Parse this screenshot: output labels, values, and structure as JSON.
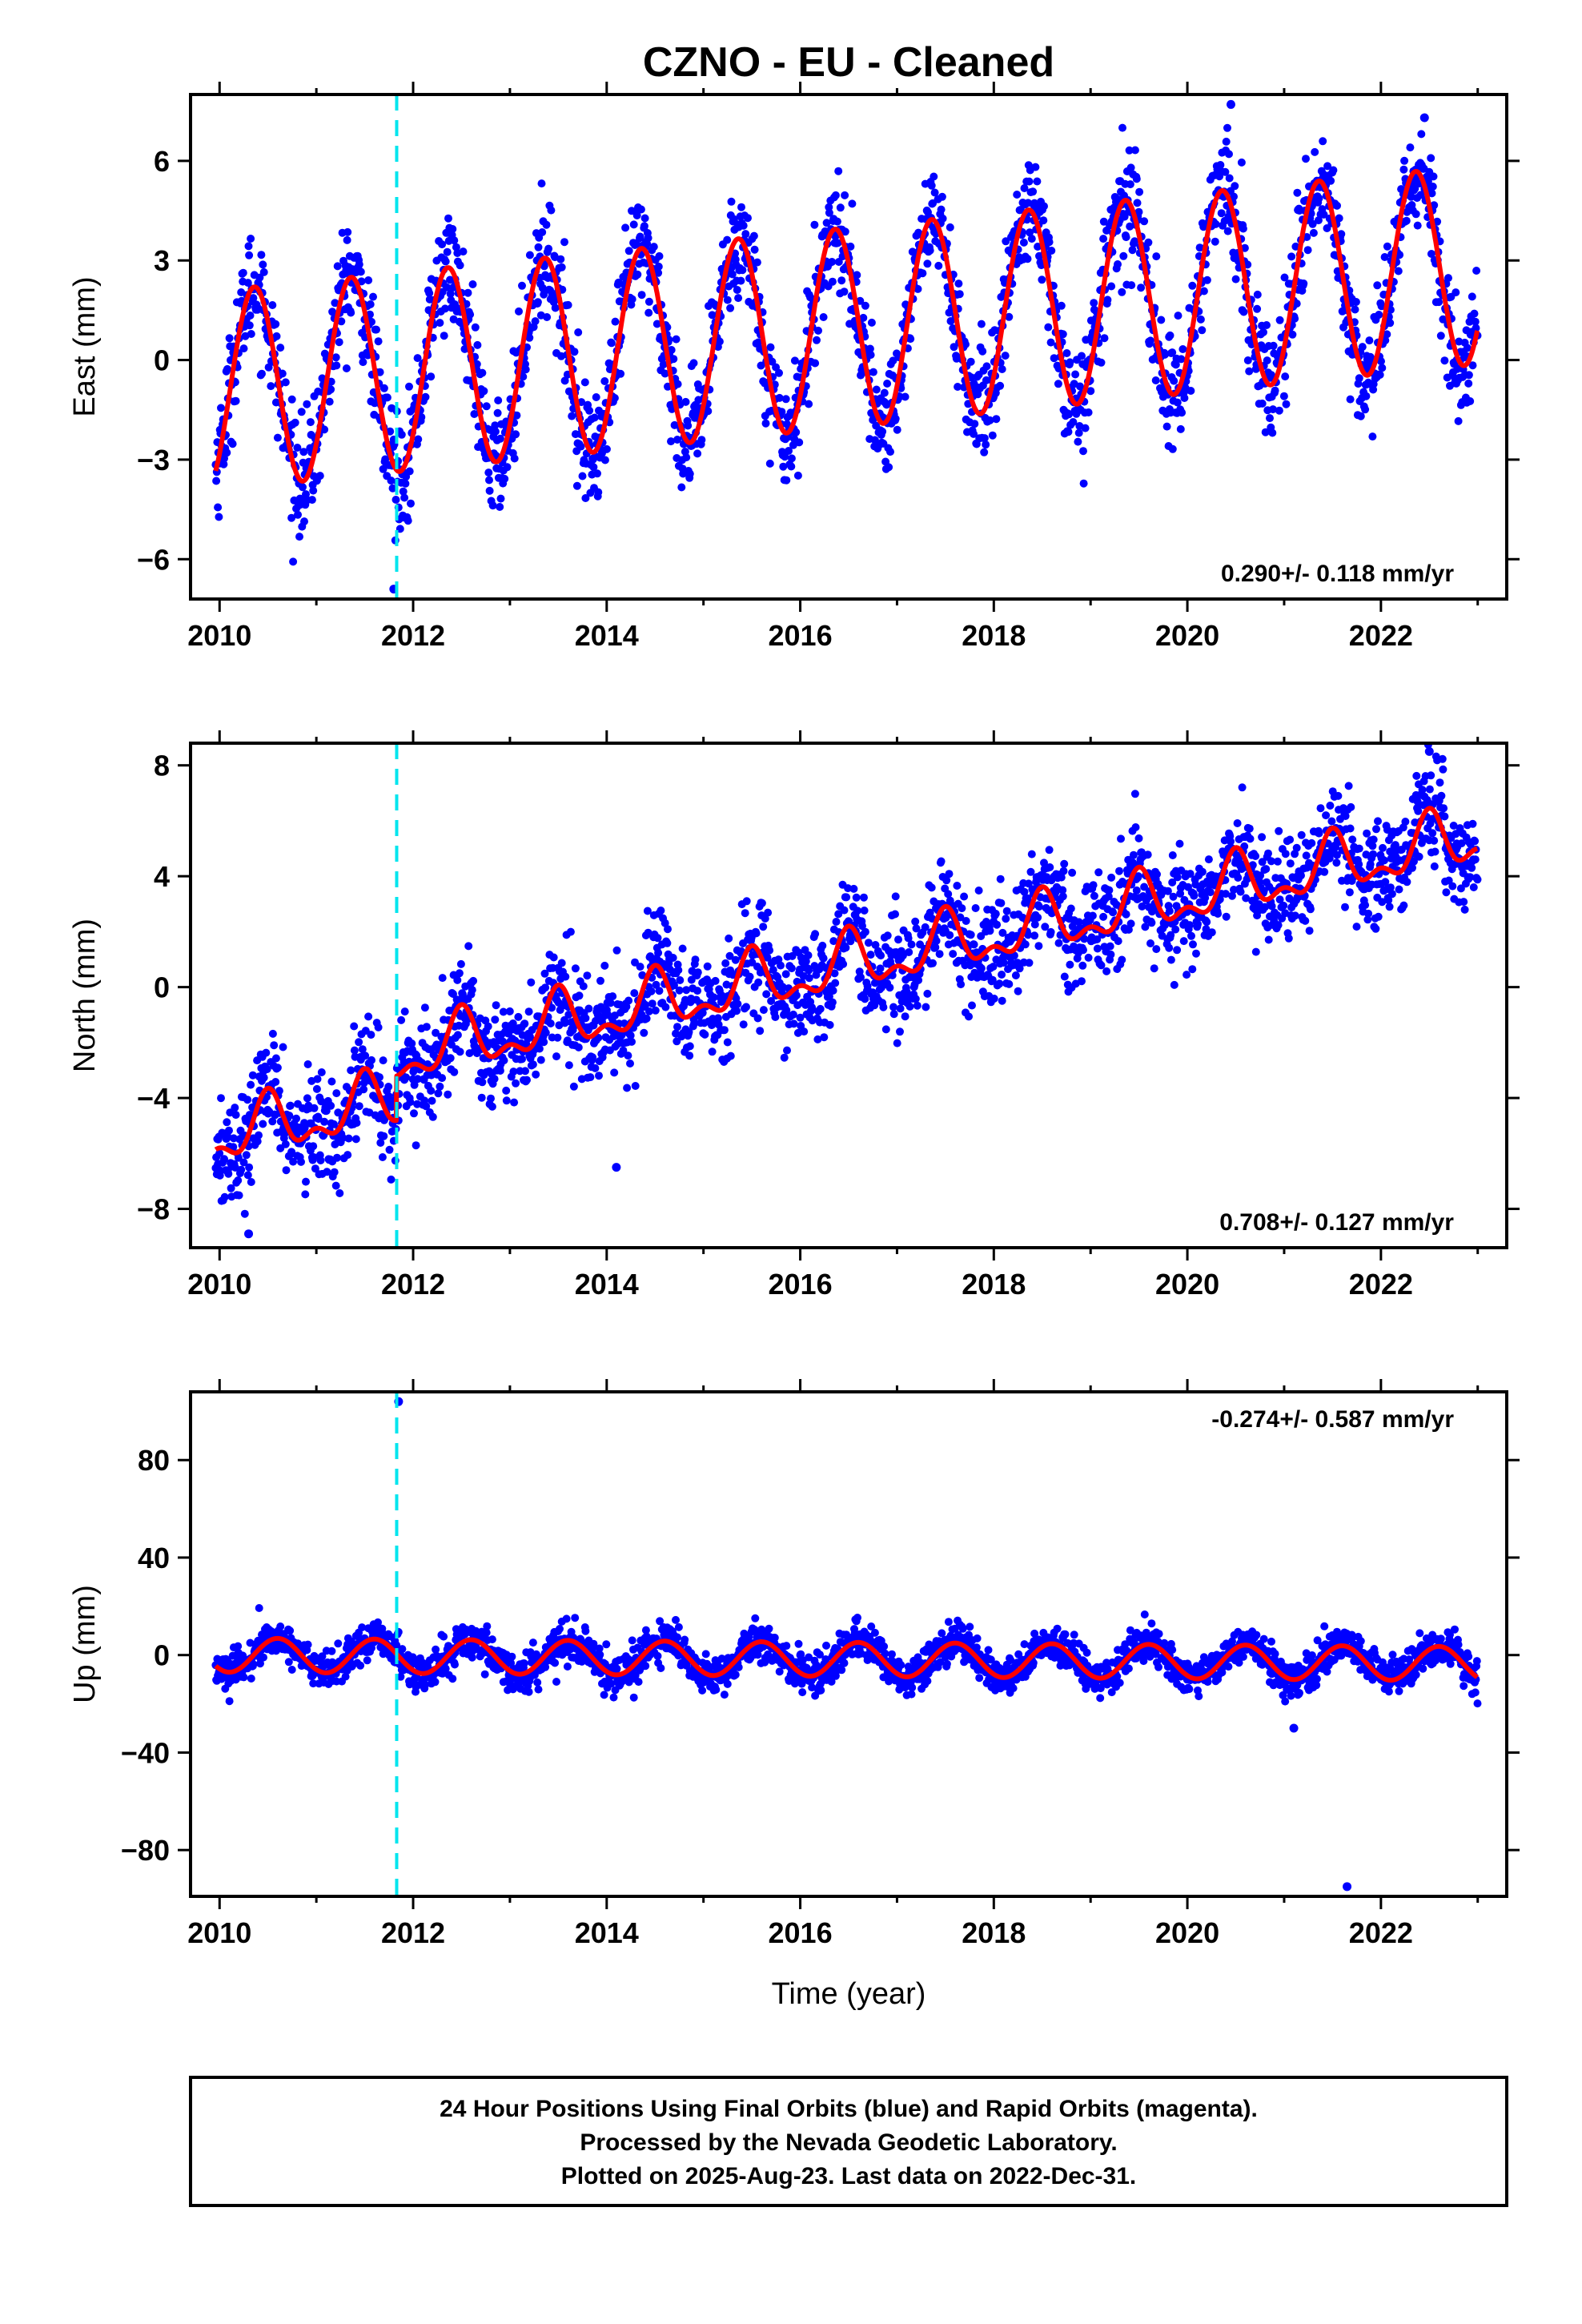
{
  "title": "CZNO  - EU - Cleaned",
  "colors": {
    "final_orbits": "#0000ff",
    "model_fit": "#ff0000",
    "equipment_change": "#00e5ee",
    "frame": "#000000"
  },
  "xaxis": {
    "label": "Time (year)",
    "range": [
      2009.7,
      2023.3
    ],
    "ticks": [
      2010,
      2012,
      2014,
      2016,
      2018,
      2020,
      2022
    ],
    "tick_labels": [
      "2010",
      "2012",
      "2014",
      "2016",
      "2018",
      "2020",
      "2022"
    ]
  },
  "equipment_change_year": 2011.83,
  "chart_data": [
    {
      "type": "scatter",
      "component": "east",
      "ylabel": "East (mm)",
      "ylim": [
        -7.2,
        8.0
      ],
      "yticks": [
        -6,
        -3,
        0,
        3,
        6
      ],
      "ytick_labels": [
        "−6",
        "−3",
        "0",
        "3",
        "6"
      ],
      "rate_text": "0.290+/- 0.118 mm/yr",
      "rate_position": "bottom-right",
      "model": {
        "intercept_2010": -0.9,
        "rate": 0.29,
        "annual_amp": 3.0,
        "annual_phase_year": 2010.36,
        "semi_amp": 0.0,
        "semi_phase_year": 2010.0,
        "offset": 0.0
      },
      "scatter_std": 0.85,
      "highlight_points": [
        {
          "year": 2011.8,
          "value": -6.9
        },
        {
          "year": 2020.45,
          "value": 7.7
        },
        {
          "year": 2022.45,
          "value": 7.3
        }
      ]
    },
    {
      "type": "scatter",
      "component": "north",
      "ylabel": "North (mm)",
      "ylim": [
        -9.4,
        8.8
      ],
      "yticks": [
        -8,
        -4,
        0,
        4,
        8
      ],
      "ytick_labels": [
        "−8",
        "−4",
        "0",
        "4",
        "8"
      ],
      "rate_text": "0.708+/- 0.127 mm/yr",
      "rate_position": "bottom-right",
      "model": {
        "intercept_2010": -5.4,
        "rate": 0.708,
        "annual_amp": 0.9,
        "annual_phase_year": 2010.5,
        "semi_amp": 0.5,
        "semi_phase_year": 2010.5,
        "offset": 1.6
      },
      "scatter_std": 0.95,
      "highlight_points": [
        {
          "year": 2014.1,
          "value": -6.5
        },
        {
          "year": 2022.5,
          "value": 8.5
        },
        {
          "year": 2010.3,
          "value": -8.9
        }
      ]
    },
    {
      "type": "scatter",
      "component": "up",
      "ylabel": "Up (mm)",
      "ylim": [
        -99,
        108
      ],
      "yticks": [
        -80,
        -40,
        0,
        40,
        80
      ],
      "ytick_labels": [
        "−80",
        "−40",
        "0",
        "40",
        "80"
      ],
      "rate_text": "-0.274+/- 0.587 mm/yr",
      "rate_position": "top-right",
      "model": {
        "intercept_2010": 0.0,
        "rate": -0.274,
        "annual_amp": 7.0,
        "annual_phase_year": 2010.6,
        "semi_amp": 0.0,
        "semi_phase_year": 2010.0,
        "offset": 0.0
      },
      "scatter_std": 3.8,
      "highlight_points": [
        {
          "year": 2011.85,
          "value": 104
        },
        {
          "year": 2021.65,
          "value": -95
        },
        {
          "year": 2021.1,
          "value": -30
        }
      ]
    }
  ],
  "footer": {
    "lines": [
      "24 Hour Positions Using Final Orbits (blue) and Rapid Orbits (magenta).",
      "Processed by the Nevada Geodetic Laboratory.",
      "Plotted on 2025-Aug-23. Last data on 2022-Dec-31."
    ]
  }
}
